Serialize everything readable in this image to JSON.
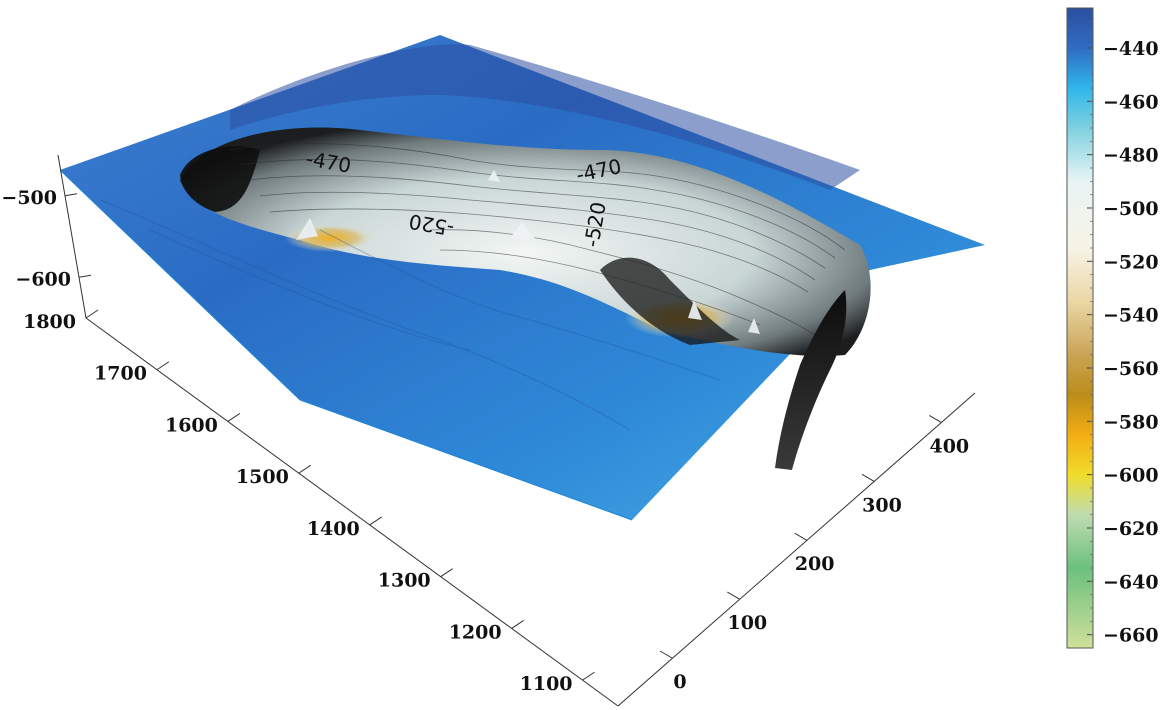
{
  "chart_data": {
    "type": "surface",
    "title": "",
    "xlabel": "",
    "ylabel": "",
    "zlabel": "",
    "x_axis": {
      "range": [
        0,
        450
      ],
      "ticks": [
        0,
        100,
        200,
        300,
        400
      ]
    },
    "y_axis": {
      "range": [
        1050,
        1800
      ],
      "ticks": [
        1100,
        1200,
        1300,
        1400,
        1500,
        1600,
        1700,
        1800
      ]
    },
    "z_axis": {
      "range": [
        -650,
        -450
      ],
      "ticks": [
        -600,
        -500
      ]
    },
    "colorbar": {
      "range": [
        -665,
        -425
      ],
      "ticks": [
        -440,
        -460,
        -480,
        -500,
        -520,
        -540,
        -560,
        -580,
        -600,
        -620,
        -640,
        -660
      ],
      "colors": [
        {
          "value": -425,
          "color": "#2c4fa0"
        },
        {
          "value": -440,
          "color": "#2f6cc2"
        },
        {
          "value": -455,
          "color": "#2fb6ea"
        },
        {
          "value": -470,
          "color": "#7fd0e0"
        },
        {
          "value": -490,
          "color": "#e8f4f4"
        },
        {
          "value": -515,
          "color": "#f7f3e6"
        },
        {
          "value": -535,
          "color": "#ead7a5"
        },
        {
          "value": -555,
          "color": "#caa455"
        },
        {
          "value": -570,
          "color": "#bb8d1a"
        },
        {
          "value": -585,
          "color": "#f2ad13"
        },
        {
          "value": -600,
          "color": "#f0dc2a"
        },
        {
          "value": -615,
          "color": "#bfdcb0"
        },
        {
          "value": -635,
          "color": "#6cc07e"
        },
        {
          "value": -665,
          "color": "#cfe09a"
        }
      ]
    },
    "contour_labels": [
      "-470",
      "-520",
      "-470",
      "-520"
    ],
    "colors": {
      "surface_high": "#2a6fc7",
      "surface_edge": "#1f86d6",
      "pit_dark": "#111111",
      "pit_light": "#e6eeee",
      "pit_gold": "#e0a21a"
    }
  }
}
